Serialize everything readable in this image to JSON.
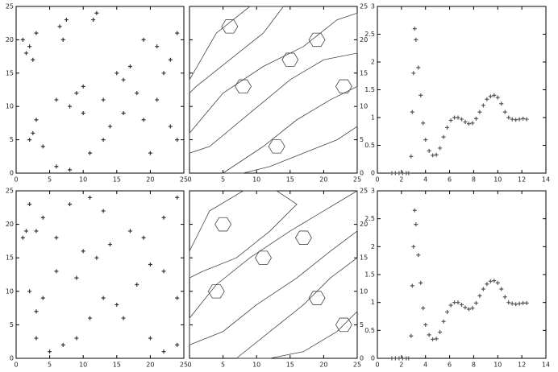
{
  "chart_data": [
    {
      "type": "scatter",
      "xlim": [
        0,
        25
      ],
      "ylim": [
        0,
        25
      ],
      "xticks": [
        0,
        5,
        10,
        15,
        20,
        25
      ],
      "yticks": [
        0,
        5,
        10,
        15,
        20,
        25
      ],
      "color": "#333333",
      "x": [
        1,
        2,
        3,
        1.5,
        2.5,
        7,
        7.5,
        6.5,
        12,
        11.5,
        3,
        2,
        2.5,
        6,
        8,
        9,
        10,
        13,
        15,
        17,
        19,
        21,
        24,
        23,
        16,
        6,
        8,
        11,
        13,
        14,
        16,
        19,
        21,
        23,
        24,
        20,
        10,
        4,
        18,
        22
      ],
      "values": [
        20,
        19,
        21,
        18,
        17,
        20,
        23,
        22,
        24,
        23,
        8,
        5,
        6,
        11,
        10,
        12,
        13,
        11,
        15,
        16,
        20,
        19,
        21,
        17,
        14,
        1,
        0.5,
        3,
        5,
        7,
        9,
        8,
        11,
        7,
        5,
        3,
        9,
        4,
        12,
        15
      ]
    },
    {
      "type": "contour",
      "xlim": [
        0,
        25
      ],
      "ylim": [
        0,
        25
      ],
      "xticks": [
        0,
        5,
        10,
        15,
        20,
        25
      ],
      "yticks": [
        0,
        5,
        10,
        15,
        20,
        25
      ],
      "color": "#444444",
      "lines": [
        {
          "x": [
            0,
            4,
            9,
            14,
            11,
            6,
            1,
            0
          ],
          "y": [
            14,
            21,
            25,
            25,
            21,
            17,
            13,
            12
          ]
        },
        {
          "x": [
            0,
            5,
            11,
            17,
            22,
            25,
            25,
            20,
            15,
            9,
            3,
            0
          ],
          "y": [
            6,
            12,
            16,
            19,
            23,
            24,
            18,
            17,
            14,
            9,
            4,
            3
          ]
        },
        {
          "x": [
            5,
            11,
            16,
            21,
            25,
            25,
            22,
            17,
            12,
            8
          ],
          "y": [
            0,
            4,
            8,
            11,
            13,
            7,
            5,
            3,
            1,
            0
          ]
        },
        {
          "x": [
            4.8,
            5.4,
            6.6,
            7.2,
            6.6,
            5.4
          ],
          "y": [
            22,
            23,
            23,
            22,
            21,
            21
          ]
        },
        {
          "x": [
            6.8,
            7.4,
            8.6,
            9.2,
            8.6,
            7.4
          ],
          "y": [
            13,
            14,
            14,
            13,
            12,
            12
          ]
        },
        {
          "x": [
            13.8,
            14.4,
            15.6,
            16.2,
            15.6,
            14.4
          ],
          "y": [
            17,
            18,
            18,
            17,
            16,
            16
          ]
        },
        {
          "x": [
            17.8,
            18.4,
            19.6,
            20.2,
            19.6,
            18.4
          ],
          "y": [
            20,
            21,
            21,
            20,
            19,
            19
          ]
        },
        {
          "x": [
            11.8,
            12.4,
            13.6,
            14.2,
            13.6,
            12.4
          ],
          "y": [
            4,
            5,
            5,
            4,
            3,
            3
          ]
        },
        {
          "x": [
            21.8,
            22.4,
            23.6,
            24.2,
            23.6,
            22.4
          ],
          "y": [
            13,
            14,
            14,
            13,
            12,
            12
          ]
        }
      ]
    },
    {
      "type": "scatter",
      "xlim": [
        0,
        14
      ],
      "ylim": [
        0,
        3
      ],
      "xticks": [
        0,
        2,
        4,
        6,
        8,
        10,
        12,
        14
      ],
      "yticks": [
        0,
        0.5,
        1,
        1.5,
        2,
        2.5,
        3
      ],
      "color": "#555555",
      "x": [
        1.2,
        1.5,
        1.8,
        2.1,
        2.4,
        2.6,
        2.8,
        2.9,
        3.0,
        3.1,
        3.2,
        3.4,
        3.6,
        3.8,
        4.0,
        4.3,
        4.6,
        4.9,
        5.2,
        5.5,
        5.8,
        6.1,
        6.4,
        6.7,
        7.0,
        7.3,
        7.6,
        7.9,
        8.2,
        8.5,
        8.8,
        9.1,
        9.4,
        9.7,
        10.0,
        10.3,
        10.6,
        10.9,
        11.2,
        11.5,
        11.8,
        12.1,
        12.4
      ],
      "values": [
        0,
        0,
        0,
        0,
        0,
        0,
        0.3,
        1.1,
        1.8,
        2.6,
        2.4,
        1.9,
        1.4,
        0.9,
        0.6,
        0.4,
        0.32,
        0.33,
        0.45,
        0.65,
        0.82,
        0.95,
        1.0,
        1.0,
        0.97,
        0.92,
        0.89,
        0.9,
        0.98,
        1.1,
        1.22,
        1.33,
        1.38,
        1.4,
        1.36,
        1.25,
        1.1,
        1.0,
        0.97,
        0.96,
        0.97,
        0.98,
        0.97
      ]
    },
    {
      "type": "scatter",
      "xlim": [
        0,
        25
      ],
      "ylim": [
        0,
        25
      ],
      "xticks": [
        0,
        5,
        10,
        15,
        20,
        25
      ],
      "yticks": [
        0,
        5,
        10,
        15,
        20,
        25
      ],
      "color": "#333333",
      "x": [
        2,
        4,
        3,
        1,
        8,
        11,
        13,
        2,
        4,
        3,
        6,
        9,
        10,
        12,
        14,
        17,
        19,
        22,
        24,
        3,
        5,
        7,
        9,
        11,
        13,
        15,
        18,
        20,
        22,
        24,
        20,
        22,
        24,
        16,
        1.5,
        6
      ],
      "values": [
        23,
        21,
        19,
        18,
        23,
        24,
        22,
        10,
        9,
        7,
        13,
        12,
        16,
        15,
        17,
        19,
        18,
        21,
        24,
        3,
        1,
        2,
        3,
        6,
        9,
        8,
        11,
        14,
        13,
        9,
        3,
        1,
        2,
        6,
        19,
        18
      ]
    },
    {
      "type": "contour",
      "xlim": [
        0,
        25
      ],
      "ylim": [
        0,
        25
      ],
      "xticks": [
        0,
        5,
        10,
        15,
        20,
        25
      ],
      "yticks": [
        0,
        5,
        10,
        15,
        20,
        25
      ],
      "color": "#444444",
      "lines": [
        {
          "x": [
            0,
            3,
            8,
            13,
            16,
            12,
            7,
            2,
            0
          ],
          "y": [
            16,
            22,
            25,
            25,
            23,
            19,
            15,
            13,
            12
          ]
        },
        {
          "x": [
            0,
            4,
            9,
            15,
            20,
            25,
            25,
            21,
            16,
            10,
            5,
            0
          ],
          "y": [
            6,
            11,
            15,
            19,
            22,
            25,
            19,
            16,
            12,
            8,
            4,
            2
          ]
        },
        {
          "x": [
            7,
            12,
            17,
            21,
            25,
            25,
            22,
            17,
            12
          ],
          "y": [
            0,
            4,
            8,
            12,
            15,
            7,
            4,
            1,
            0
          ]
        },
        {
          "x": [
            3.8,
            4.4,
            5.6,
            6.2,
            5.6,
            4.4
          ],
          "y": [
            20,
            21,
            21,
            20,
            19,
            19
          ]
        },
        {
          "x": [
            2.8,
            3.4,
            4.6,
            5.2,
            4.6,
            3.4
          ],
          "y": [
            10,
            11,
            11,
            10,
            9,
            9
          ]
        },
        {
          "x": [
            9.8,
            10.4,
            11.6,
            12.2,
            11.6,
            10.4
          ],
          "y": [
            15,
            16,
            16,
            15,
            14,
            14
          ]
        },
        {
          "x": [
            15.8,
            16.4,
            17.6,
            18.2,
            17.6,
            16.4
          ],
          "y": [
            18,
            19,
            19,
            18,
            17,
            17
          ]
        },
        {
          "x": [
            17.8,
            18.4,
            19.6,
            20.2,
            19.6,
            18.4
          ],
          "y": [
            9,
            10,
            10,
            9,
            8,
            8
          ]
        },
        {
          "x": [
            21.8,
            22.4,
            23.6,
            24.2,
            23.6,
            22.4
          ],
          "y": [
            5,
            6,
            6,
            5,
            4,
            4
          ]
        }
      ]
    },
    {
      "type": "scatter",
      "xlim": [
        0,
        14
      ],
      "ylim": [
        0,
        3
      ],
      "xticks": [
        0,
        2,
        4,
        6,
        8,
        10,
        12,
        14
      ],
      "yticks": [
        0,
        0.5,
        1,
        1.5,
        2,
        2.5,
        3
      ],
      "color": "#555555",
      "x": [
        1.2,
        1.5,
        1.8,
        2.1,
        2.4,
        2.6,
        2.8,
        2.9,
        3.0,
        3.1,
        3.2,
        3.4,
        3.6,
        3.8,
        4.0,
        4.3,
        4.6,
        4.9,
        5.2,
        5.5,
        5.8,
        6.1,
        6.4,
        6.7,
        7.0,
        7.3,
        7.6,
        7.9,
        8.2,
        8.5,
        8.8,
        9.1,
        9.4,
        9.7,
        10.0,
        10.3,
        10.6,
        10.9,
        11.2,
        11.5,
        11.8,
        12.1,
        12.4
      ],
      "values": [
        0,
        0,
        0,
        0,
        0,
        0,
        0.4,
        1.3,
        2.0,
        2.65,
        2.4,
        1.85,
        1.35,
        0.9,
        0.6,
        0.42,
        0.34,
        0.35,
        0.47,
        0.66,
        0.83,
        0.95,
        1.0,
        1.0,
        0.96,
        0.91,
        0.88,
        0.9,
        0.99,
        1.12,
        1.24,
        1.33,
        1.38,
        1.39,
        1.35,
        1.24,
        1.1,
        1.0,
        0.98,
        0.97,
        0.98,
        0.99,
        0.99
      ]
    }
  ]
}
